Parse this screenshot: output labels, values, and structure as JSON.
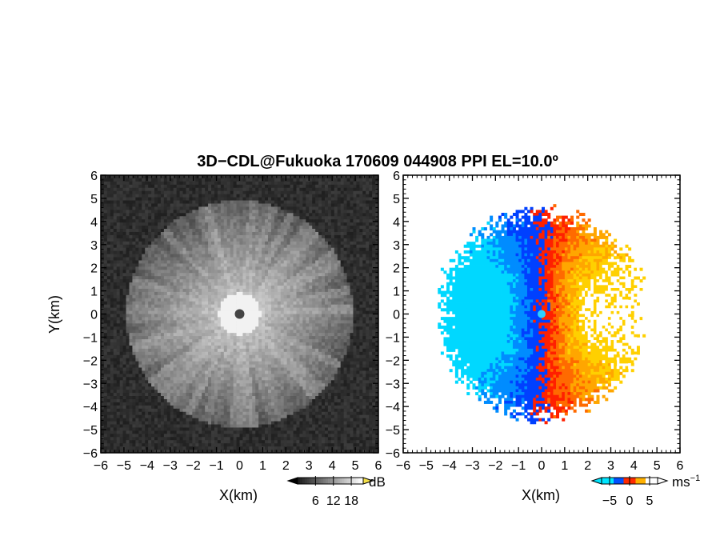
{
  "title": "3D−CDL@Fukuoka 170609 044908 PPI EL=10.0º",
  "chart_data": [
    {
      "type": "heatmap",
      "panel": "left",
      "quantity": "backscatter intensity",
      "xlabel": "X(km)",
      "ylabel": "Y(km)",
      "xlim": [
        -6,
        6
      ],
      "ylim": [
        -6,
        6
      ],
      "x_ticks": [
        "−6",
        "−5",
        "−4",
        "−3",
        "−2",
        "−1",
        "0",
        "1",
        "2",
        "3",
        "4",
        "5",
        "6"
      ],
      "y_ticks": [
        "−6",
        "−5",
        "−4",
        "−3",
        "−2",
        "−1",
        "0",
        "1",
        "2",
        "3",
        "4",
        "5",
        "6"
      ],
      "colorbar": {
        "unit": "dB",
        "ticks": [
          "6",
          "12",
          "18"
        ],
        "range": [
          0,
          22
        ],
        "colormap": "grayscale",
        "colors": [
          "#000000",
          "#ffffff",
          "#f4e04a"
        ]
      }
    },
    {
      "type": "heatmap",
      "panel": "right",
      "quantity": "Doppler velocity",
      "xlabel": "X(km)",
      "xlim": [
        -6,
        6
      ],
      "ylim": [
        -6,
        6
      ],
      "x_ticks": [
        "−6",
        "−5",
        "−4",
        "−3",
        "−2",
        "−1",
        "0",
        "1",
        "2",
        "3",
        "4",
        "5",
        "6"
      ],
      "y_ticks": [
        "−6",
        "−5",
        "−4",
        "−3",
        "−2",
        "−1",
        "0",
        "1",
        "2",
        "3",
        "4",
        "5",
        "6"
      ],
      "colorbar": {
        "unit": "ms−1",
        "ticks": [
          "−5",
          "0",
          "5"
        ],
        "range": [
          -7,
          7
        ],
        "colormap": "diverging cyan-blue-red-yellow",
        "colors": [
          "#00e5ff",
          "#0050ff",
          "#ff2a00",
          "#ffb000",
          "#ffffff"
        ]
      }
    }
  ]
}
